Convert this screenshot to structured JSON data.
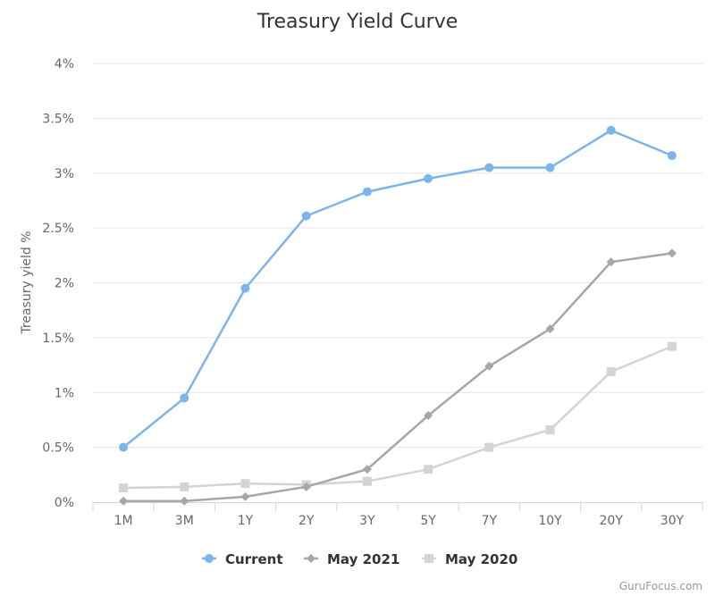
{
  "chart_data": {
    "type": "line",
    "title": "Treasury Yield Curve",
    "xlabel": "",
    "ylabel": "Treasury yield %",
    "categories": [
      "1M",
      "3M",
      "1Y",
      "2Y",
      "3Y",
      "5Y",
      "7Y",
      "10Y",
      "20Y",
      "30Y"
    ],
    "ylim": [
      0,
      4
    ],
    "yticks": [
      0,
      0.5,
      1,
      1.5,
      2,
      2.5,
      3,
      3.5,
      4
    ],
    "ytick_labels": [
      "0%",
      "0.5%",
      "1%",
      "1.5%",
      "2%",
      "2.5%",
      "3%",
      "3.5%",
      "4%"
    ],
    "grid": true,
    "legend_position": "bottom-center",
    "series": [
      {
        "name": "Current",
        "marker": "circle",
        "color": "#7cb5ec",
        "values": [
          0.5,
          0.95,
          1.95,
          2.61,
          2.83,
          2.95,
          3.05,
          3.05,
          3.39,
          3.16
        ]
      },
      {
        "name": "May 2021",
        "marker": "diamond",
        "color": "#a6a6a6",
        "values": [
          0.01,
          0.01,
          0.05,
          0.14,
          0.3,
          0.79,
          1.24,
          1.58,
          2.19,
          2.27
        ]
      },
      {
        "name": "May 2020",
        "marker": "square",
        "color": "#d4d4d4",
        "values": [
          0.13,
          0.14,
          0.17,
          0.16,
          0.19,
          0.3,
          0.5,
          0.66,
          1.19,
          1.42
        ]
      }
    ]
  },
  "credit": "GuruFocus.com"
}
